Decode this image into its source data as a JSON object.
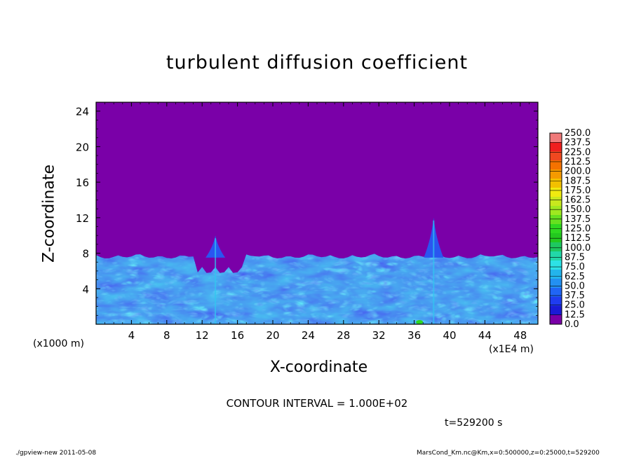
{
  "chart_data": {
    "type": "heatmap",
    "title": "turbulent diffusion coefficient",
    "xlabel": "X-coordinate",
    "ylabel": "Z-coordinate",
    "x_unit_left": "(x1000 m)",
    "x_unit_right": "(x1E4 m)",
    "xlim": [
      0,
      50
    ],
    "ylim": [
      0,
      25
    ],
    "xticks": [
      "4",
      "8",
      "12",
      "16",
      "20",
      "24",
      "28",
      "32",
      "36",
      "40",
      "44",
      "48"
    ],
    "yticks": [
      "4",
      "8",
      "12",
      "16",
      "20",
      "24"
    ],
    "colorbar_levels": [
      "0.0",
      "12.5",
      "25.0",
      "37.5",
      "50.0",
      "62.5",
      "75.0",
      "87.5",
      "100.0",
      "112.5",
      "125.0",
      "137.5",
      "150.0",
      "162.5",
      "175.0",
      "187.5",
      "200.0",
      "212.5",
      "225.0",
      "237.5",
      "250.0"
    ],
    "colorbar_colors": [
      "#7a00a8",
      "#1a1ad6",
      "#1f3cf0",
      "#2065f5",
      "#2390f2",
      "#23b4ec",
      "#2de2e6",
      "#22d8a8",
      "#1ec860",
      "#23c81f",
      "#2ed820",
      "#66e01f",
      "#a0e820",
      "#c8e81e",
      "#f0ea10",
      "#f2c000",
      "#f59a00",
      "#f57200",
      "#f04820",
      "#f01f1f",
      "#f07a7a"
    ],
    "background_value_color": "#7a00a8",
    "boundary_layer_top_z": 8,
    "plume_peaks": [
      {
        "x": 13.5,
        "z": 10.0
      },
      {
        "x": 38.2,
        "z": 12.0
      }
    ],
    "contour_interval": "CONTOUR INTERVAL = 1.000E+02",
    "time_label": "t=529200 s"
  },
  "footer": {
    "left": "./gpview-new  2011-05-08",
    "right": "MarsCond_Km.nc@Km,x=0:500000,z=0:25000,t=529200"
  }
}
